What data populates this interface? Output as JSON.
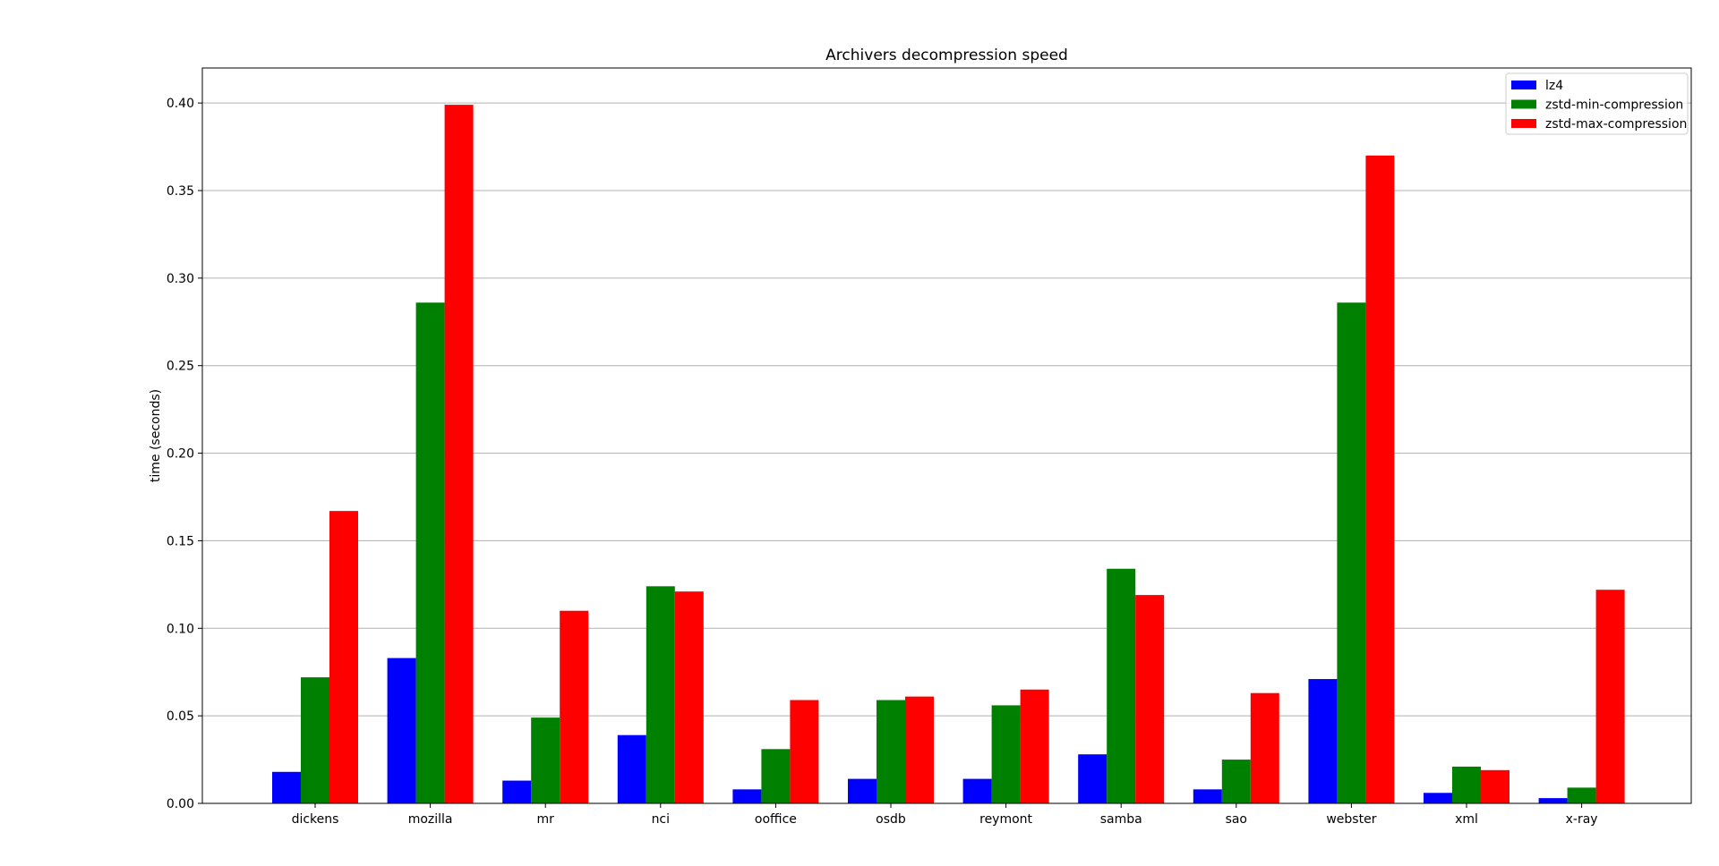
{
  "chart_data": {
    "type": "bar",
    "title": "Archivers decompression speed",
    "xlabel": "",
    "ylabel": "time (seconds)",
    "ylim": [
      0,
      0.42
    ],
    "yticks": [
      "0.00",
      "0.05",
      "0.10",
      "0.15",
      "0.20",
      "0.25",
      "0.30",
      "0.35",
      "0.40"
    ],
    "grid": "horizontal",
    "legend_position": "top-right",
    "categories": [
      "dickens",
      "mozilla",
      "mr",
      "nci",
      "ooffice",
      "osdb",
      "reymont",
      "samba",
      "sao",
      "webster",
      "xml",
      "x-ray"
    ],
    "series": [
      {
        "name": "lz4",
        "color": "#0000ff",
        "values": [
          0.018,
          0.083,
          0.013,
          0.039,
          0.008,
          0.014,
          0.014,
          0.028,
          0.008,
          0.071,
          0.006,
          0.003
        ]
      },
      {
        "name": "zstd-min-compression",
        "color": "#008000",
        "values": [
          0.072,
          0.286,
          0.049,
          0.124,
          0.031,
          0.059,
          0.056,
          0.134,
          0.025,
          0.286,
          0.021,
          0.009
        ]
      },
      {
        "name": "zstd-max-compression",
        "color": "#ff0000",
        "values": [
          0.167,
          0.399,
          0.11,
          0.121,
          0.059,
          0.061,
          0.065,
          0.119,
          0.063,
          0.37,
          0.019,
          0.122
        ]
      }
    ]
  }
}
